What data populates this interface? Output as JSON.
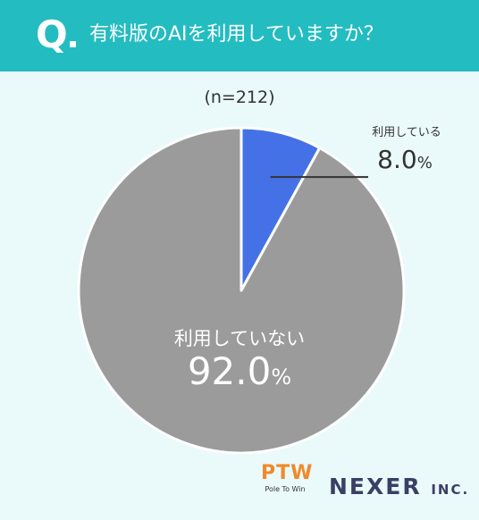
{
  "header": {
    "q_mark": "Q",
    "question": "有料版のAIを利用していますか？"
  },
  "sample_size": "(n=212)",
  "chart_data": {
    "type": "pie",
    "slices": [
      {
        "label": "利用している",
        "value": 8.0,
        "display": "8.0",
        "color": "#4472e6"
      },
      {
        "label": "利用していない",
        "value": 92.0,
        "display": "92.0",
        "color": "#9b9b9b"
      }
    ],
    "unit": "%"
  },
  "logos": {
    "ptw_main": "PTW",
    "ptw_sub": "Pole To Win",
    "nexer_main": "NEXER",
    "nexer_inc": "INC."
  }
}
